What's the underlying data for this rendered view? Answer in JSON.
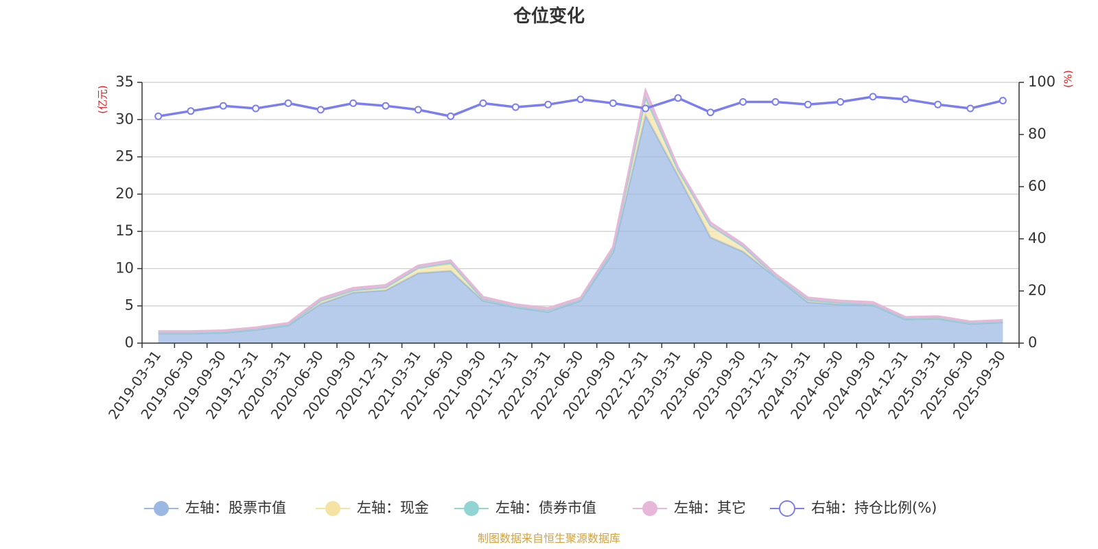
{
  "chart_data": {
    "type": "area",
    "title": "仓位变化",
    "left_axis_unit": "(亿元)",
    "right_axis_unit": "(%)",
    "source": "制图数据来自恒生聚源数据库",
    "x": [
      "2019-03-31",
      "2019-06-30",
      "2019-09-30",
      "2019-12-31",
      "2020-03-31",
      "2020-06-30",
      "2020-09-30",
      "2020-12-31",
      "2021-03-31",
      "2021-06-30",
      "2021-09-30",
      "2021-12-31",
      "2022-03-31",
      "2022-06-30",
      "2022-09-30",
      "2022-12-31",
      "2023-03-31",
      "2023-06-30",
      "2023-09-30",
      "2023-12-31",
      "2024-03-31",
      "2024-06-30",
      "2024-09-30",
      "2024-12-31",
      "2025-03-31",
      "2025-06-30",
      "2025-09-30"
    ],
    "ylim_left": [
      0,
      35
    ],
    "yticks_left": [
      "0",
      "5",
      "10",
      "15",
      "20",
      "25",
      "30",
      "35"
    ],
    "ylim_right": [
      0,
      100
    ],
    "yticks_right": [
      "0",
      "20",
      "40",
      "60",
      "80",
      "100"
    ],
    "grid": true,
    "legend_position": "bottom",
    "stacked": true,
    "series": [
      {
        "name": "左轴：股票市值",
        "axis": "left",
        "color": "#9bb8e3",
        "values": [
          1.3,
          1.3,
          1.4,
          1.8,
          2.4,
          5.3,
          6.8,
          7.1,
          9.4,
          9.7,
          5.7,
          4.8,
          4.2,
          5.7,
          12.2,
          30.6,
          22.5,
          14.2,
          12.3,
          8.9,
          5.5,
          5.2,
          5.1,
          3.2,
          3.3,
          2.6,
          2.8
        ]
      },
      {
        "name": "左轴：现金",
        "axis": "left",
        "color": "#f5e3a3",
        "values": [
          0.1,
          0.1,
          0.1,
          0.1,
          0.1,
          0.4,
          0.3,
          0.4,
          0.7,
          0.9,
          0.2,
          0.1,
          0.2,
          0.1,
          0.4,
          2.4,
          0.8,
          1.6,
          0.7,
          0.1,
          0.3,
          0.2,
          0.1,
          0.1,
          0.1,
          0.1,
          0.1
        ]
      },
      {
        "name": "左轴：债券市值",
        "axis": "left",
        "color": "#92d4d3",
        "values": [
          0,
          0,
          0,
          0,
          0,
          0,
          0,
          0,
          0,
          0.2,
          0,
          0,
          0,
          0,
          0,
          0,
          0,
          0,
          0,
          0,
          0,
          0,
          0,
          0,
          0,
          0,
          0
        ]
      },
      {
        "name": "左轴：其它",
        "axis": "left",
        "color": "#e7b7d9",
        "values": [
          0.2,
          0.2,
          0.2,
          0.2,
          0.2,
          0.3,
          0.3,
          0.3,
          0.3,
          0.3,
          0.3,
          0.3,
          0.3,
          0.3,
          0.3,
          0.9,
          0.3,
          0.4,
          0.3,
          0.3,
          0.3,
          0.3,
          0.3,
          0.2,
          0.2,
          0.2,
          0.2
        ]
      },
      {
        "name": "右轴：持仓比例(%)",
        "axis": "right",
        "color": "#7b7ef0",
        "values": [
          87,
          89,
          91,
          90,
          92,
          89.5,
          92,
          91,
          89.5,
          87,
          92,
          90.5,
          91.5,
          93.5,
          92,
          90,
          94,
          88.5,
          92.5,
          92.5,
          91.5,
          92.5,
          94.5,
          93.5,
          91.5,
          90,
          93
        ]
      }
    ]
  }
}
